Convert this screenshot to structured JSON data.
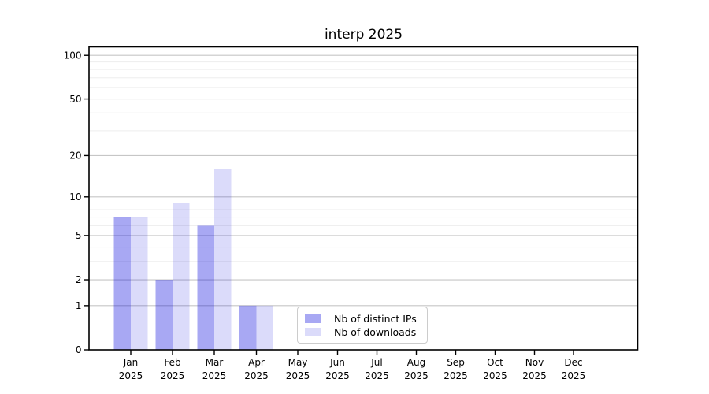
{
  "chart_data": {
    "type": "bar",
    "title": "interp 2025",
    "xlabel": "",
    "ylabel": "",
    "x_categories": [
      "Jan",
      "Feb",
      "Mar",
      "Apr",
      "May",
      "Jun",
      "Jul",
      "Aug",
      "Sep",
      "Oct",
      "Nov",
      "Dec"
    ],
    "x_year": "2025",
    "y_scale": "log10(1+v)",
    "y_major_ticks": [
      0,
      1,
      2,
      5,
      10,
      20,
      50,
      100
    ],
    "y_minor_ticks": [
      3,
      4,
      6,
      7,
      8,
      9,
      30,
      40,
      60,
      70,
      80,
      90
    ],
    "ylim": [
      0,
      114.3
    ],
    "grid": "horizontal-major-and-minor",
    "legend_position": "lower-center-inside",
    "series": [
      {
        "name": "Nb of distinct IPs",
        "color": "rgba(0,0,220,0.34)",
        "values": [
          7,
          2,
          6,
          1,
          0,
          0,
          0,
          0,
          0,
          0,
          0,
          0
        ]
      },
      {
        "name": "Nb of downloads",
        "color": "rgba(0,0,220,0.14)",
        "values": [
          7,
          9,
          16,
          1,
          0,
          0,
          0,
          0,
          0,
          0,
          0,
          0
        ]
      }
    ],
    "colors": {
      "bar_dark_on_white": "#a8a8f3",
      "bar_light_on_white": "#dbdbfa",
      "grid_major": "#c6c6c6",
      "grid_minor": "#ededed",
      "axis": "#000000",
      "text": "#000000"
    }
  }
}
